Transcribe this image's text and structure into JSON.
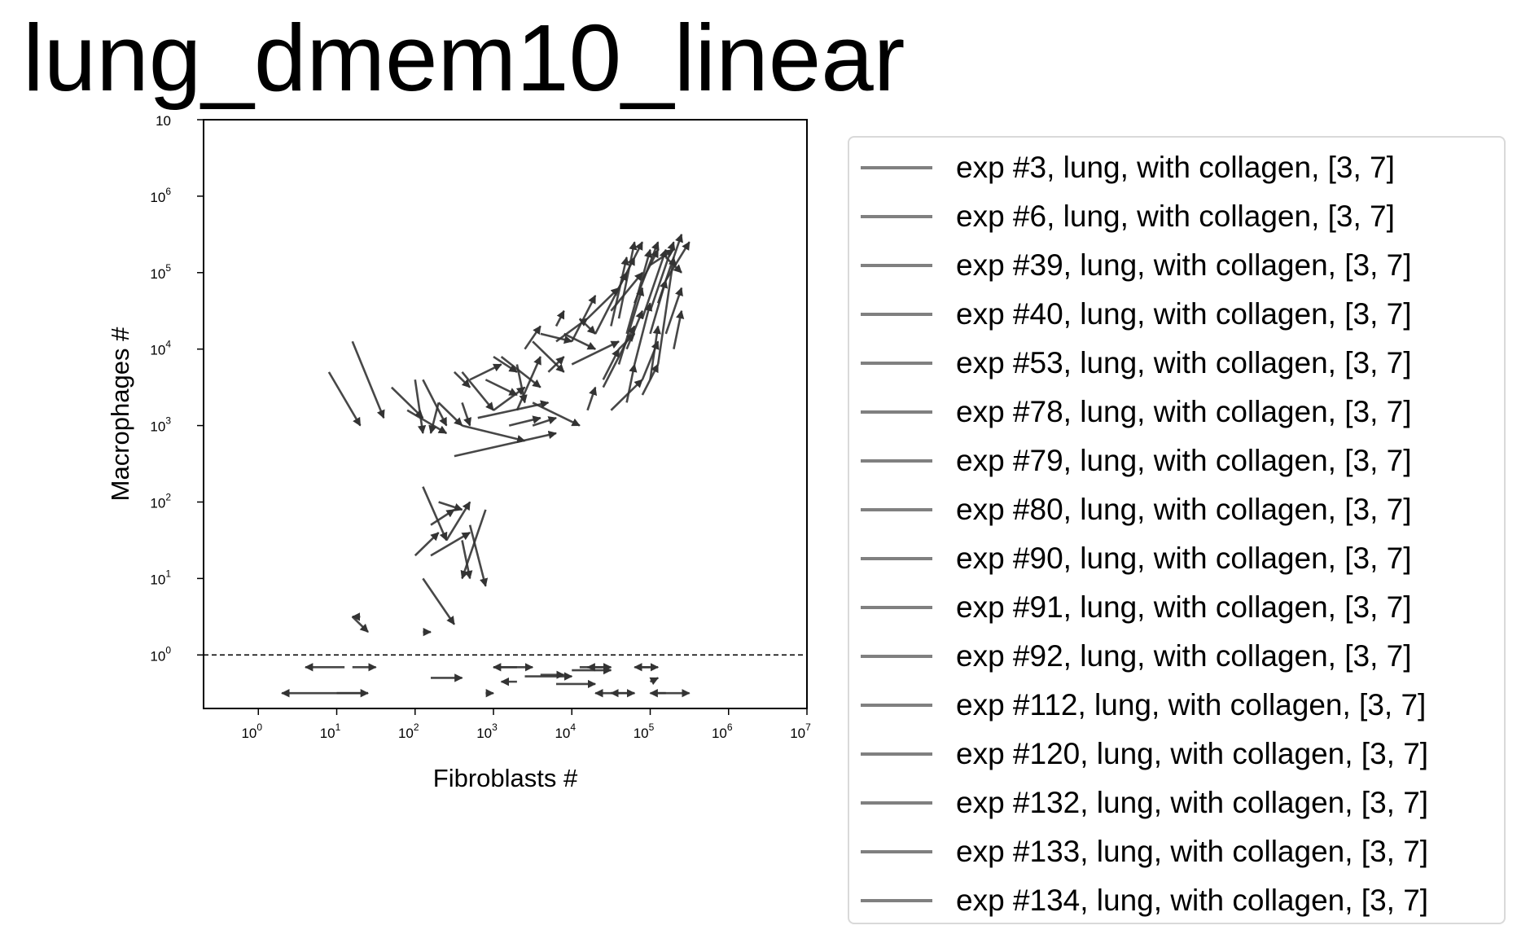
{
  "chart_data": {
    "type": "quiver",
    "title": "lung_dmem10_linear",
    "xlabel": "Fibroblasts #",
    "ylabel": "Macrophages #",
    "x_scale": "log",
    "y_scale": "log",
    "xlim": [
      0.2,
      10000000
    ],
    "ylim_log_decades": [
      -0.7,
      7
    ],
    "x_ticks": [
      {
        "base": "10",
        "exp": "0"
      },
      {
        "base": "10",
        "exp": "1"
      },
      {
        "base": "10",
        "exp": "2"
      },
      {
        "base": "10",
        "exp": "3"
      },
      {
        "base": "10",
        "exp": "4"
      },
      {
        "base": "10",
        "exp": "5"
      },
      {
        "base": "10",
        "exp": "6"
      },
      {
        "base": "10",
        "exp": "7"
      }
    ],
    "y_ticks": [
      {
        "base": "10",
        "exp": "0"
      },
      {
        "base": "10",
        "exp": "1"
      },
      {
        "base": "10",
        "exp": "2"
      },
      {
        "base": "10",
        "exp": "3"
      },
      {
        "base": "10",
        "exp": "4"
      },
      {
        "base": "10",
        "exp": "5"
      },
      {
        "base": "10",
        "exp": "6"
      },
      {
        "base": "10",
        "exp": ""
      }
    ],
    "reference_line": {
      "y": 1,
      "style": "dashed"
    },
    "arrow_color": "#333333",
    "legend_line_color": "#808080",
    "legend_position": "outside-right",
    "arrows": [
      [
        0.9,
        3.7,
        1.3,
        3.0
      ],
      [
        1.2,
        4.1,
        1.6,
        3.1
      ],
      [
        1.7,
        3.5,
        2.1,
        3.1
      ],
      [
        1.9,
        3.2,
        2.4,
        2.9
      ],
      [
        2.1,
        3.6,
        2.4,
        3.0
      ],
      [
        2.3,
        3.3,
        2.6,
        3.0
      ],
      [
        2.6,
        3.7,
        3.0,
        3.2
      ],
      [
        2.9,
        3.6,
        3.3,
        3.4
      ],
      [
        3.1,
        3.9,
        3.6,
        3.5
      ],
      [
        3.3,
        3.8,
        3.4,
        3.3
      ],
      [
        3.5,
        4.1,
        3.9,
        3.7
      ],
      [
        3.8,
        4.1,
        4.2,
        4.4
      ],
      [
        4.0,
        4.1,
        4.3,
        4.7
      ],
      [
        4.2,
        4.4,
        4.6,
        4.8
      ],
      [
        4.3,
        4.2,
        4.7,
        5.0
      ],
      [
        4.5,
        4.3,
        4.7,
        5.2
      ],
      [
        4.6,
        4.4,
        4.8,
        5.4
      ],
      [
        4.7,
        4.2,
        5.0,
        5.3
      ],
      [
        4.6,
        3.8,
        4.9,
        4.8
      ],
      [
        4.8,
        4.6,
        5.1,
        5.4
      ],
      [
        4.9,
        4.4,
        5.2,
        5.3
      ],
      [
        5.0,
        4.5,
        5.3,
        5.4
      ],
      [
        5.1,
        4.6,
        5.4,
        5.5
      ],
      [
        5.2,
        4.9,
        5.5,
        5.4
      ],
      [
        4.4,
        3.5,
        4.8,
        4.3
      ],
      [
        4.8,
        3.8,
        5.0,
        4.6
      ],
      [
        4.5,
        3.2,
        4.9,
        3.6
      ],
      [
        3.5,
        3.3,
        4.1,
        3.0
      ],
      [
        3.2,
        3.0,
        3.6,
        3.1
      ],
      [
        2.8,
        3.1,
        3.7,
        3.3
      ],
      [
        2.6,
        3.0,
        3.4,
        2.8
      ],
      [
        3.0,
        3.2,
        3.4,
        3.5
      ],
      [
        2.5,
        2.6,
        3.8,
        2.9
      ],
      [
        3.5,
        3.0,
        3.8,
        3.1
      ],
      [
        4.0,
        3.8,
        4.6,
        4.1
      ],
      [
        4.4,
        3.6,
        4.6,
        4.0
      ],
      [
        4.7,
        4.0,
        4.9,
        4.5
      ],
      [
        5.0,
        4.2,
        5.2,
        4.9
      ],
      [
        5.3,
        4.0,
        5.4,
        4.5
      ],
      [
        5.1,
        3.8,
        5.3,
        5.2
      ],
      [
        4.9,
        3.6,
        5.1,
        4.1
      ],
      [
        4.7,
        3.3,
        4.8,
        3.8
      ],
      [
        4.9,
        3.4,
        5.1,
        3.8
      ],
      [
        5.0,
        3.6,
        5.1,
        4.3
      ],
      [
        5.2,
        4.2,
        5.4,
        4.8
      ],
      [
        3.9,
        4.2,
        4.3,
        4.0
      ],
      [
        3.6,
        4.2,
        4.0,
        4.1
      ],
      [
        3.0,
        3.9,
        3.3,
        3.7
      ],
      [
        2.7,
        3.6,
        3.1,
        3.8
      ],
      [
        2.5,
        3.7,
        2.7,
        3.5
      ],
      [
        3.8,
        4.3,
        3.9,
        4.5
      ],
      [
        4.1,
        4.4,
        4.3,
        4.2
      ],
      [
        4.5,
        4.5,
        4.9,
        5.0
      ],
      [
        4.6,
        4.8,
        4.8,
        5.2
      ],
      [
        4.9,
        4.9,
        5.1,
        5.3
      ],
      [
        5.0,
        5.1,
        5.3,
        5.3
      ],
      [
        4.8,
        5.2,
        4.9,
        5.4
      ],
      [
        5.2,
        5.2,
        5.4,
        5.0
      ],
      [
        3.3,
        3.2,
        3.6,
        3.9
      ],
      [
        2.6,
        3.3,
        2.7,
        3.0
      ],
      [
        2.3,
        3.3,
        2.2,
        2.9
      ],
      [
        2.0,
        3.6,
        2.1,
        2.9
      ],
      [
        2.1,
        2.2,
        2.4,
        1.5
      ],
      [
        2.2,
        1.7,
        2.5,
        1.9
      ],
      [
        2.2,
        1.3,
        2.7,
        1.6
      ],
      [
        2.4,
        1.5,
        2.7,
        2.0
      ],
      [
        2.6,
        1.5,
        2.7,
        1.0
      ],
      [
        2.7,
        1.7,
        2.9,
        0.9
      ],
      [
        2.9,
        1.9,
        2.6,
        1.0
      ],
      [
        2.1,
        1.0,
        2.5,
        0.4
      ],
      [
        2.0,
        1.3,
        2.3,
        1.6
      ],
      [
        2.3,
        2.0,
        2.6,
        1.9
      ],
      [
        1.2,
        0.5,
        1.4,
        0.3
      ],
      [
        1.3,
        0.5,
        1.2,
        0.5
      ],
      [
        2.1,
        0.3,
        2.2,
        0.3
      ],
      [
        3.4,
        4.0,
        3.6,
        4.3
      ],
      [
        3.7,
        3.7,
        3.9,
        3.9
      ],
      [
        4.2,
        3.2,
        4.3,
        3.5
      ],
      [
        4.6,
        4.0,
        4.8,
        4.2
      ]
    ],
    "below_arrows": [
      [
        1.1,
        -0.16,
        0.6,
        -0.16
      ],
      [
        1.2,
        -0.16,
        1.5,
        -0.16
      ],
      [
        2.2,
        -0.3,
        2.6,
        -0.3
      ],
      [
        3.0,
        -0.16,
        3.5,
        -0.16
      ],
      [
        3.3,
        -0.16,
        3.0,
        -0.16
      ],
      [
        3.4,
        -0.28,
        4.0,
        -0.28
      ],
      [
        3.6,
        -0.26,
        3.9,
        -0.26
      ],
      [
        4.0,
        -0.2,
        4.5,
        -0.2
      ],
      [
        4.1,
        -0.16,
        4.5,
        -0.16
      ],
      [
        3.8,
        -0.38,
        4.3,
        -0.38
      ],
      [
        4.9,
        -0.16,
        5.1,
        -0.16
      ],
      [
        5.0,
        -0.16,
        4.8,
        -0.16
      ],
      [
        5.1,
        -0.5,
        5.5,
        -0.5
      ],
      [
        5.2,
        -0.5,
        5.0,
        -0.5
      ],
      [
        1.4,
        -0.5,
        0.3,
        -0.5
      ],
      [
        1.0,
        -0.5,
        1.4,
        -0.5
      ],
      [
        3.3,
        -0.35,
        3.1,
        -0.35
      ],
      [
        2.9,
        -0.5,
        3.0,
        -0.5
      ],
      [
        4.5,
        -0.5,
        4.8,
        -0.5
      ],
      [
        4.6,
        -0.5,
        4.3,
        -0.5
      ],
      [
        4.8,
        -0.5,
        4.5,
        -0.5
      ],
      [
        5.0,
        -0.35,
        5.1,
        -0.3
      ],
      [
        4.4,
        -0.16,
        4.2,
        -0.16
      ]
    ]
  },
  "legend": {
    "entries": [
      "exp #3, lung, with collagen, [3, 7]",
      "exp #6, lung, with collagen, [3, 7]",
      "exp #39, lung, with collagen, [3, 7]",
      "exp #40, lung, with collagen, [3, 7]",
      "exp #53, lung, with collagen, [3, 7]",
      "exp #78, lung, with collagen, [3, 7]",
      "exp #79, lung, with collagen, [3, 7]",
      "exp #80, lung, with collagen, [3, 7]",
      "exp #90, lung, with collagen, [3, 7]",
      "exp #91, lung, with collagen, [3, 7]",
      "exp #92, lung, with collagen, [3, 7]",
      "exp #112, lung, with collagen, [3, 7]",
      "exp #120, lung, with collagen, [3, 7]",
      "exp #132, lung, with collagen, [3, 7]",
      "exp #133, lung, with collagen, [3, 7]",
      "exp #134, lung, with collagen, [3, 7]"
    ]
  }
}
